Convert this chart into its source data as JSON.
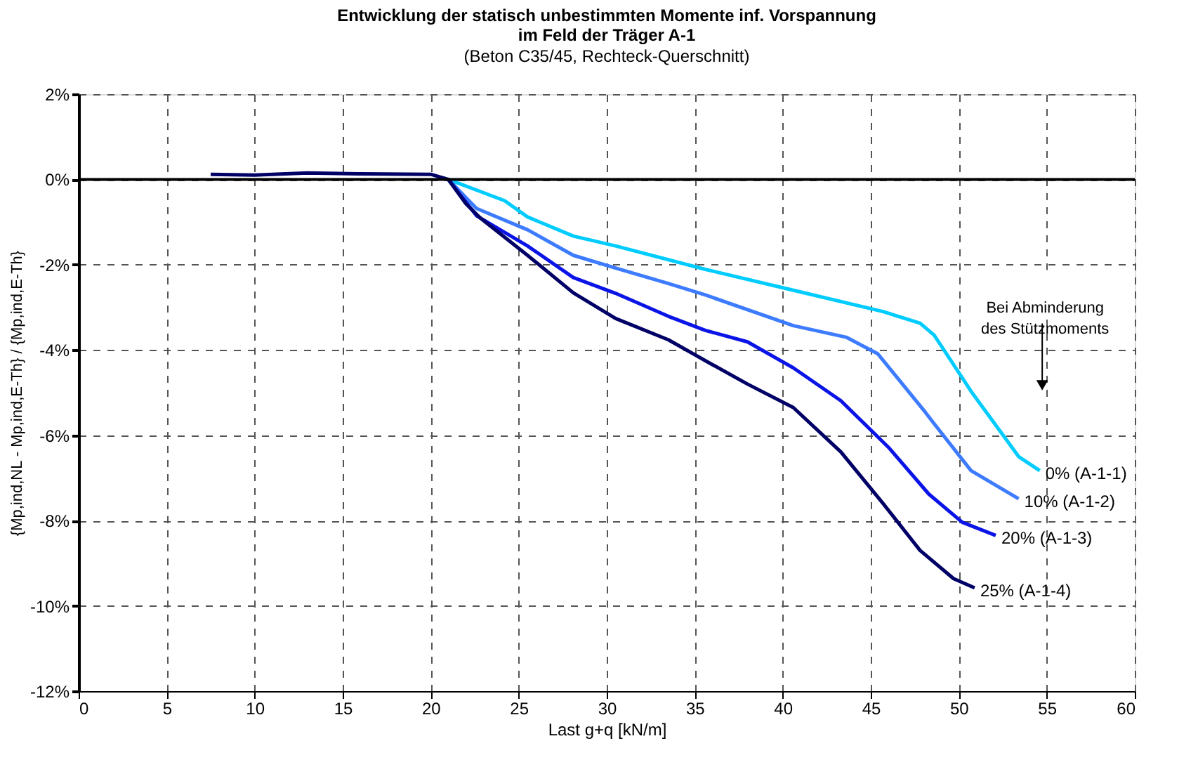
{
  "chart_data": {
    "type": "line",
    "title": "Entwicklung der statisch unbestimmten Momente inf. Vorspannung\nim Feld der Träger A-1",
    "subtitle": "(Beton C35/45,  Rechteck-Querschnitt)",
    "xlabel": "Last g+q [kN/m]",
    "ylabel": "{Mp,ind,NL - Mp,ind,E-Th} / {Mp,ind,E-Th}",
    "annotations": [
      "Bei Abminderung\ndes  Stützmoments"
    ],
    "xlim": [
      0,
      60
    ],
    "xticks": [
      0,
      5,
      10,
      15,
      20,
      25,
      30,
      35,
      40,
      45,
      50,
      55,
      60
    ],
    "ylim": [
      -12,
      2
    ],
    "yticks": [
      {
        "value": -12,
        "label": "-12%"
      },
      {
        "value": -10,
        "label": "-10%"
      },
      {
        "value": -8,
        "label": "-8%"
      },
      {
        "value": -6,
        "label": "-6%"
      },
      {
        "value": -4,
        "label": "-4%"
      },
      {
        "value": -2,
        "label": "-2%"
      },
      {
        "value": 0,
        "label": "0%"
      },
      {
        "value": 2,
        "label": "2%"
      }
    ],
    "grid": true,
    "legend": false,
    "marker": "none",
    "line_style": "solid",
    "ref_lines": [
      {
        "axis": "y",
        "value": 0,
        "color": "#000000"
      }
    ],
    "series": [
      {
        "name": "0% (A-1-1)",
        "color": "#00ccff",
        "x": [
          21,
          24.2,
          25.5,
          28.1,
          30.5,
          35.6,
          40.6,
          45.7,
          47.8,
          48.6,
          50.7,
          53.4,
          54.6
        ],
        "values": [
          0,
          -0.5,
          -0.88,
          -1.33,
          -1.56,
          -2.11,
          -2.6,
          -3.1,
          -3.37,
          -3.65,
          -4.97,
          -6.5,
          -6.83
        ]
      },
      {
        "name": "10% (A-1-2)",
        "color": "#3d7bff",
        "x": [
          21,
          22.6,
          25.5,
          28.1,
          30.5,
          33.5,
          35.6,
          40.6,
          43.6,
          45.4,
          48.1,
          48.6,
          50.7,
          53.4
        ],
        "values": [
          0,
          -0.68,
          -1.18,
          -1.78,
          -2.08,
          -2.44,
          -2.71,
          -3.43,
          -3.7,
          -4.09,
          -5.46,
          -5.73,
          -6.83,
          -7.49
        ]
      },
      {
        "name": "20% (A-1-3)",
        "color": "#0a14e6",
        "x": [
          21,
          22.6,
          25.5,
          28.1,
          30.5,
          33.5,
          35.6,
          38.0,
          40.6,
          43.3,
          46.0,
          48.3,
          50.2,
          52.1
        ],
        "values": [
          0,
          -0.85,
          -1.56,
          -2.3,
          -2.67,
          -3.21,
          -3.54,
          -3.81,
          -4.42,
          -5.19,
          -6.28,
          -7.38,
          -8.04,
          -8.35
        ]
      },
      {
        "name": "25% (A-1-4)",
        "color": "#000066",
        "x": [
          7.5,
          10,
          13,
          16,
          20,
          21,
          22.0,
          22.8,
          25.5,
          28.1,
          30.5,
          33.5,
          35.6,
          38.0,
          40.6,
          43.3,
          45.7,
          47.8,
          49.7,
          50.9
        ],
        "values": [
          0.12,
          0.1,
          0.15,
          0.13,
          0.12,
          0,
          -0.57,
          -0.9,
          -1.78,
          -2.66,
          -3.26,
          -3.76,
          -4.25,
          -4.8,
          -5.35,
          -6.39,
          -7.6,
          -8.7,
          -9.36,
          -9.58
        ]
      }
    ]
  }
}
